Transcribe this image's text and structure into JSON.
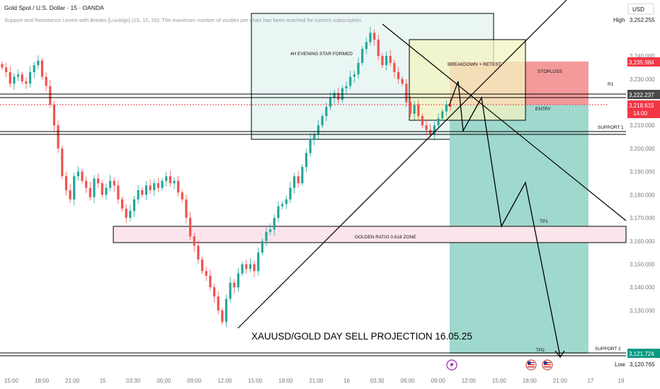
{
  "header": {
    "symbol_title": "Gold Spot / U.S. Dollar · 15 · OANDA",
    "indicator_line": "Support and Resistance Levels with Breaks [LuxAlgo] (15, 15, 20): The maximum number of studies per chart has been reached for current subscription"
  },
  "price_axis": {
    "currency": "USD",
    "high_label": "High",
    "high_value": "3,252.255",
    "low_label": "Low",
    "low_value": "3,120.765"
  },
  "badges": {
    "stoploss_price": "3,235.984",
    "r1_price": "3,222.237",
    "current_price": "3,218.615",
    "countdown": "14:00",
    "tp2_price": "3,121.724"
  },
  "annotations": {
    "evening_star": "4H EVENING STAR FORMED",
    "breakdown": "BREAKDOWN + RETEST",
    "stoploss": "STOPLOSS",
    "entry": "ENTRY",
    "r1": "R1",
    "support1": "SUPPORT 1",
    "tp1": "TP1",
    "golden_zone": "GOLDEN RATIO 0.618 ZONE",
    "tp2": "TP2",
    "support2": "SUPPORT 2",
    "projection_title": "XAUUSD/GOLD DAY SELL PROJECTION 16.05.25"
  },
  "colors": {
    "bull": "#26a69a",
    "bear": "#ef5350",
    "tp_zone": "#9fd8cd",
    "sl_zone": "#f59a9a",
    "golden_zone": "#fce4ec",
    "evening_box": "#e9f6f4",
    "breakdown_box": "#f3f4c2",
    "badge_red": "#f23645",
    "badge_teal": "#089981",
    "badge_gray": "#4a4a4a"
  },
  "chart_data": {
    "type": "candlestick",
    "ylim": [
      3115,
      3255
    ],
    "y_ticks": [
      3130,
      3140,
      3150,
      3160,
      3170,
      3180,
      3190,
      3200,
      3210,
      3220,
      3230,
      3240
    ],
    "x_ticks": [
      "15:00",
      "18:00",
      "21:00",
      "15",
      "03:30",
      "06:00",
      "09:00",
      "12:00",
      "15:00",
      "18:00",
      "21:00",
      "16",
      "03:30",
      "06:00",
      "09:00",
      "12:00",
      "15:00",
      "18:00",
      "21:00",
      "17",
      "19"
    ],
    "levels": {
      "r1": 3222.237,
      "support1": 3207.5,
      "golden_zone": [
        3164.5,
        3171.5
      ],
      "support2": 3121.724,
      "stoploss": 3235.984,
      "entry": 3218.615
    },
    "ohlc_path": [
      3235,
      3233,
      3228,
      3231,
      3232,
      3229,
      3228,
      3233,
      3236,
      3238,
      3231,
      3227,
      3219,
      3210,
      3200,
      3188,
      3182,
      3178,
      3188,
      3190,
      3186,
      3183,
      3179,
      3187,
      3185,
      3180,
      3183,
      3186,
      3184,
      3178,
      3174,
      3170,
      3173,
      3178,
      3182,
      3180,
      3184,
      3182,
      3185,
      3183,
      3186,
      3188,
      3185,
      3186,
      3181,
      3178,
      3170,
      3162,
      3158,
      3152,
      3147,
      3145,
      3140,
      3136,
      3130,
      3125,
      3135,
      3142,
      3140,
      3146,
      3150,
      3148,
      3150,
      3147,
      3155,
      3160,
      3164,
      3165,
      3170,
      3175,
      3176,
      3178,
      3183,
      3188,
      3185,
      3192,
      3198,
      3204,
      3206,
      3210,
      3214,
      3218,
      3222,
      3224,
      3221,
      3226,
      3227,
      3231,
      3232,
      3237,
      3243,
      3246,
      3250,
      3247,
      3240,
      3236,
      3240,
      3237,
      3233,
      3230,
      3228,
      3220,
      3215,
      3219,
      3214,
      3210,
      3208,
      3206,
      3210,
      3213,
      3216,
      3219,
      3218
    ]
  }
}
